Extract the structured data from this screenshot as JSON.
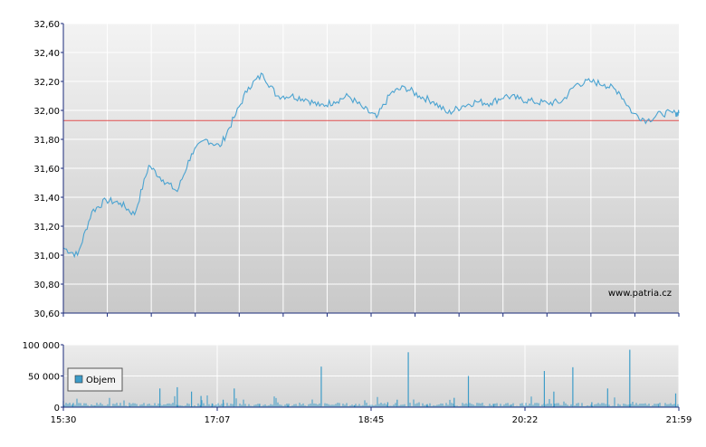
{
  "watermark": "www.patria.cz",
  "colors": {
    "price_line": "#4aa3d1",
    "reference_line": "#e05050",
    "volume_bar": "#3d9cc8",
    "grid": "#ffffff",
    "axis": "#1a2a7a"
  },
  "chart_data": [
    {
      "type": "line",
      "title": "",
      "xlabel": "",
      "ylabel": "",
      "ylim": [
        30.6,
        32.6
      ],
      "y_ticks": [
        "32,60",
        "32,40",
        "32,20",
        "32,00",
        "31,80",
        "31,60",
        "31,40",
        "31,20",
        "31,00",
        "30,80",
        "30,60"
      ],
      "reference_level": 31.93,
      "grid": true,
      "series": [
        {
          "x": [
            "15:30",
            "15:39",
            "15:48",
            "15:57",
            "16:06",
            "16:15",
            "16:24",
            "16:33",
            "16:42",
            "16:51",
            "17:00",
            "17:09",
            "17:18",
            "17:27",
            "17:36",
            "17:45",
            "17:54",
            "18:03",
            "18:12",
            "18:21",
            "18:30",
            "18:39",
            "18:48",
            "18:57",
            "19:06",
            "19:15",
            "19:24",
            "19:33",
            "19:42",
            "19:51",
            "20:00",
            "20:09",
            "20:18",
            "20:27",
            "20:36",
            "20:45",
            "20:54",
            "21:03",
            "21:12",
            "21:21",
            "21:30",
            "21:39",
            "21:48",
            "21:57",
            "21:59"
          ],
          "values": [
            31.05,
            31.0,
            31.3,
            31.38,
            31.36,
            31.28,
            31.62,
            31.52,
            31.44,
            31.7,
            31.8,
            31.75,
            31.95,
            32.16,
            32.25,
            32.1,
            32.1,
            32.08,
            32.03,
            32.06,
            32.1,
            32.02,
            31.95,
            32.12,
            32.16,
            32.1,
            32.06,
            31.98,
            32.03,
            32.06,
            32.05,
            32.1,
            32.08,
            32.06,
            32.05,
            32.06,
            32.18,
            32.2,
            32.18,
            32.13,
            31.98,
            31.93,
            31.98,
            31.98,
            31.98
          ]
        }
      ]
    },
    {
      "type": "bar",
      "title": "",
      "ylim": [
        0,
        100000
      ],
      "y_ticks": [
        "100 000",
        "50 000",
        "0"
      ],
      "x_ticks": [
        "15:30",
        "17:07",
        "18:45",
        "20:22",
        "21:59"
      ],
      "legend": "Objem",
      "legend_position": "left",
      "series": [
        {
          "name": "Objem",
          "x": [
            "15:30",
            "15:36",
            "15:50",
            "16:12",
            "16:31",
            "16:42",
            "16:51",
            "16:57",
            "17:04",
            "17:11",
            "17:18",
            "17:34",
            "17:52",
            "18:13",
            "18:34",
            "18:55",
            "19:01",
            "19:08",
            "19:20",
            "19:37",
            "19:46",
            "20:02",
            "20:13",
            "20:34",
            "20:40",
            "20:52",
            "21:04",
            "21:14",
            "21:28",
            "21:46",
            "21:57"
          ],
          "values": [
            10000,
            5000,
            3000,
            2000,
            30000,
            32000,
            25000,
            18000,
            6000,
            12000,
            30000,
            5000,
            3000,
            65000,
            3000,
            8000,
            12000,
            88000,
            5000,
            15000,
            50000,
            5000,
            4000,
            58000,
            25000,
            64000,
            8000,
            30000,
            92000,
            5000,
            22000
          ]
        }
      ]
    }
  ]
}
